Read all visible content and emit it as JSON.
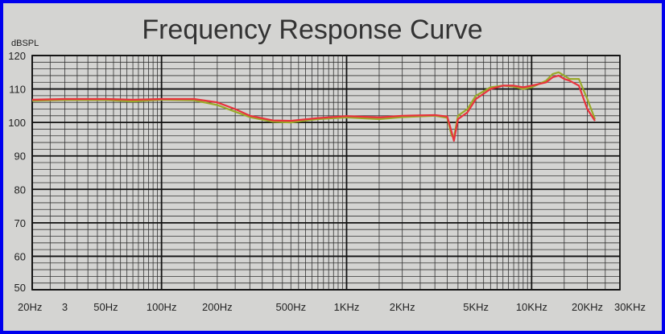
{
  "chart_data": {
    "type": "line",
    "title": "Frequency Response Curve",
    "ylabel": "dBSPL",
    "xscale": "log",
    "xlim": [
      20,
      30000
    ],
    "ylim": [
      50,
      120
    ],
    "grid": true,
    "legend": "none",
    "x_ticks": [
      {
        "value": 20,
        "label": "20Hz"
      },
      {
        "value": 30,
        "label": "3"
      },
      {
        "value": 50,
        "label": "50Hz"
      },
      {
        "value": 100,
        "label": "100Hz"
      },
      {
        "value": 200,
        "label": "200Hz"
      },
      {
        "value": 500,
        "label": "500Hz"
      },
      {
        "value": 1000,
        "label": "1KHz"
      },
      {
        "value": 2000,
        "label": "2KHz"
      },
      {
        "value": 5000,
        "label": "5KHz"
      },
      {
        "value": 10000,
        "label": "10KHz"
      },
      {
        "value": 20000,
        "label": "20KHz"
      },
      {
        "value": 30000,
        "label": "30KHz"
      }
    ],
    "y_ticks": [
      {
        "value": 120,
        "label": "120"
      },
      {
        "value": 110,
        "label": "110"
      },
      {
        "value": 100,
        "label": "100"
      },
      {
        "value": 90,
        "label": "90"
      },
      {
        "value": 80,
        "label": "80"
      },
      {
        "value": 70,
        "label": "70"
      },
      {
        "value": 60,
        "label": "60"
      },
      {
        "value": 50,
        "label": "50"
      }
    ],
    "series": [
      {
        "color": "#9aaa28",
        "points": [
          [
            20,
            106.5
          ],
          [
            30,
            106.7
          ],
          [
            50,
            106.7
          ],
          [
            70,
            106.3
          ],
          [
            100,
            106.8
          ],
          [
            150,
            106.6
          ],
          [
            200,
            105.2
          ],
          [
            250,
            103.2
          ],
          [
            300,
            101.6
          ],
          [
            400,
            100.2
          ],
          [
            500,
            100.0
          ],
          [
            700,
            101.0
          ],
          [
            1000,
            101.5
          ],
          [
            1500,
            101.0
          ],
          [
            2000,
            101.6
          ],
          [
            3000,
            102.0
          ],
          [
            3500,
            101.4
          ],
          [
            3700,
            96.0
          ],
          [
            3800,
            95.5
          ],
          [
            4000,
            102.0
          ],
          [
            4500,
            104.0
          ],
          [
            5000,
            108.0
          ],
          [
            6000,
            110.5
          ],
          [
            7000,
            111.0
          ],
          [
            8000,
            110.7
          ],
          [
            9000,
            110.0
          ],
          [
            10000,
            110.5
          ],
          [
            12000,
            112.5
          ],
          [
            13000,
            114.5
          ],
          [
            14000,
            115.0
          ],
          [
            15000,
            114.0
          ],
          [
            16000,
            113.0
          ],
          [
            18000,
            113.0
          ],
          [
            20000,
            107.0
          ],
          [
            22000,
            101.0
          ]
        ]
      },
      {
        "color": "#e8323c",
        "points": [
          [
            20,
            106.8
          ],
          [
            30,
            107.0
          ],
          [
            50,
            107.0
          ],
          [
            70,
            106.8
          ],
          [
            100,
            107.0
          ],
          [
            150,
            107.0
          ],
          [
            200,
            106.0
          ],
          [
            250,
            104.0
          ],
          [
            300,
            102.0
          ],
          [
            400,
            100.6
          ],
          [
            500,
            100.5
          ],
          [
            700,
            101.3
          ],
          [
            1000,
            101.9
          ],
          [
            1500,
            101.5
          ],
          [
            2000,
            102.0
          ],
          [
            3000,
            102.2
          ],
          [
            3500,
            101.8
          ],
          [
            3700,
            97.0
          ],
          [
            3800,
            94.5
          ],
          [
            4000,
            101.0
          ],
          [
            4500,
            103.0
          ],
          [
            5000,
            107.0
          ],
          [
            6000,
            110.0
          ],
          [
            7000,
            111.0
          ],
          [
            8000,
            111.0
          ],
          [
            9000,
            110.5
          ],
          [
            10000,
            111.0
          ],
          [
            12000,
            112.0
          ],
          [
            13000,
            113.5
          ],
          [
            14000,
            114.0
          ],
          [
            15000,
            113.0
          ],
          [
            16000,
            112.5
          ],
          [
            18000,
            111.0
          ],
          [
            20000,
            104.0
          ],
          [
            22000,
            100.5
          ]
        ]
      }
    ]
  }
}
